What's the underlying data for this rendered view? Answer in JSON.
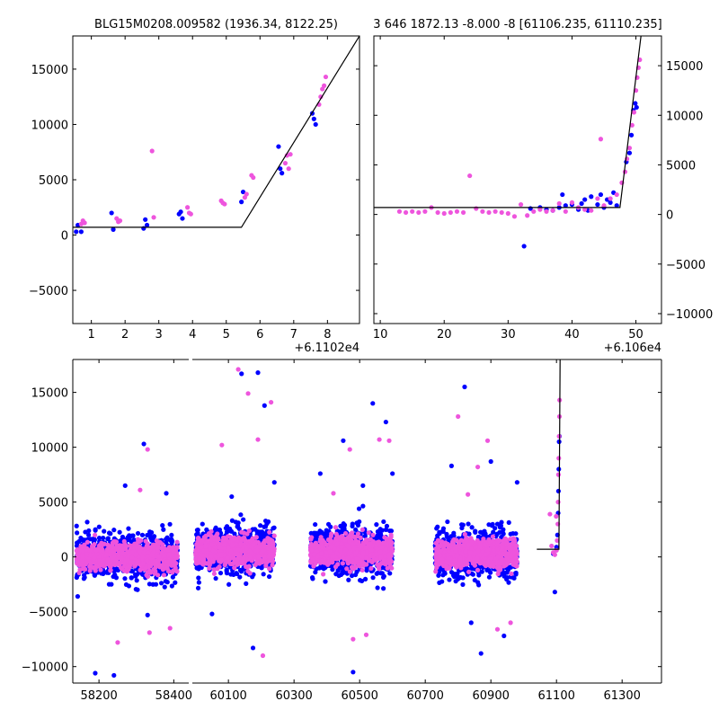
{
  "chart_data": [
    {
      "id": "top-left",
      "type": "scatter",
      "title": "BLG15M0208.009582 (1936.34, 8122.25)",
      "xlim": [
        0.45,
        8.95
      ],
      "ylim": [
        -8000,
        18000
      ],
      "x_offset_label": "+6.1102e4",
      "xticks": [
        1,
        2,
        3,
        4,
        5,
        6,
        7,
        8
      ],
      "yticks": [
        -5000,
        0,
        5000,
        10000,
        15000
      ],
      "ytick_labels": [
        "−5000",
        "0",
        "5000",
        "10000",
        "15000"
      ],
      "yaxis_side": "left",
      "model_line": [
        [
          0.45,
          700
        ],
        [
          5.45,
          700
        ],
        [
          8.95,
          18000
        ]
      ],
      "series": [
        {
          "name": "blue",
          "color": "#0000ff",
          "points": [
            [
              0.55,
              300
            ],
            [
              0.6,
              900
            ],
            [
              0.7,
              300
            ],
            [
              1.6,
              2000
            ],
            [
              1.65,
              500
            ],
            [
              2.55,
              600
            ],
            [
              2.6,
              1400
            ],
            [
              2.65,
              900
            ],
            [
              3.6,
              1900
            ],
            [
              3.65,
              2100
            ],
            [
              3.7,
              1500
            ],
            [
              5.45,
              3000
            ],
            [
              5.5,
              3900
            ],
            [
              6.55,
              8000
            ],
            [
              6.6,
              6000
            ],
            [
              6.65,
              5600
            ],
            [
              7.55,
              11000
            ],
            [
              7.6,
              10500
            ],
            [
              7.65,
              10000
            ]
          ]
        },
        {
          "name": "magenta",
          "color": "#ee55dd",
          "points": [
            [
              0.7,
              1000
            ],
            [
              0.75,
              1300
            ],
            [
              0.8,
              1100
            ],
            [
              1.75,
              1500
            ],
            [
              1.8,
              1200
            ],
            [
              1.85,
              1300
            ],
            [
              2.8,
              7600
            ],
            [
              2.85,
              1600
            ],
            [
              3.85,
              2500
            ],
            [
              3.9,
              2000
            ],
            [
              3.95,
              1900
            ],
            [
              4.85,
              3100
            ],
            [
              4.9,
              2900
            ],
            [
              4.95,
              2800
            ],
            [
              5.55,
              3400
            ],
            [
              5.6,
              3700
            ],
            [
              5.75,
              5400
            ],
            [
              5.8,
              5200
            ],
            [
              6.75,
              6500
            ],
            [
              6.8,
              7200
            ],
            [
              6.85,
              6000
            ],
            [
              6.9,
              7300
            ],
            [
              7.8,
              12500
            ],
            [
              7.85,
              13200
            ],
            [
              7.9,
              13500
            ],
            [
              7.95,
              14300
            ],
            [
              7.75,
              11800
            ]
          ]
        }
      ]
    },
    {
      "id": "top-right",
      "type": "scatter",
      "title": "3 646 1872.13 -8.000 -8 [61106.235, 61110.235]",
      "xlim": [
        9,
        54
      ],
      "ylim": [
        -11000,
        18000
      ],
      "x_offset_label": "+6.106e4",
      "xticks": [
        10,
        20,
        30,
        40,
        50
      ],
      "yticks": [
        -10000,
        -5000,
        0,
        5000,
        10000,
        15000
      ],
      "ytick_labels": [
        "−10000",
        "−5000",
        "0",
        "5000",
        "10000",
        "15000"
      ],
      "yaxis_side": "right",
      "model_line": [
        [
          9,
          700
        ],
        [
          47.5,
          700
        ],
        [
          50.8,
          18000
        ]
      ],
      "series": [
        {
          "name": "blue",
          "color": "#0000ff",
          "points": [
            [
              32.5,
              -3200
            ],
            [
              33.5,
              600
            ],
            [
              35,
              700
            ],
            [
              36,
              500
            ],
            [
              37,
              400
            ],
            [
              38,
              700
            ],
            [
              38.5,
              2000
            ],
            [
              39,
              900
            ],
            [
              40,
              1000
            ],
            [
              41,
              500
            ],
            [
              41.5,
              1100
            ],
            [
              42,
              1500
            ],
            [
              42.5,
              400
            ],
            [
              43,
              1800
            ],
            [
              44,
              1000
            ],
            [
              44.5,
              2000
            ],
            [
              45,
              700
            ],
            [
              45.5,
              1500
            ],
            [
              46,
              1200
            ],
            [
              46.5,
              2200
            ],
            [
              47,
              900
            ],
            [
              48.5,
              5300
            ],
            [
              49,
              6200
            ],
            [
              49.3,
              8000
            ],
            [
              49.6,
              10500
            ],
            [
              49.9,
              11200
            ],
            [
              50.1,
              10800
            ]
          ]
        },
        {
          "name": "magenta",
          "color": "#ee55dd",
          "points": [
            [
              13,
              300
            ],
            [
              14,
              200
            ],
            [
              15,
              300
            ],
            [
              16,
              200
            ],
            [
              17,
              300
            ],
            [
              18,
              700
            ],
            [
              19,
              200
            ],
            [
              20,
              100
            ],
            [
              21,
              200
            ],
            [
              22,
              300
            ],
            [
              23,
              200
            ],
            [
              24,
              3900
            ],
            [
              25,
              600
            ],
            [
              26,
              300
            ],
            [
              27,
              200
            ],
            [
              28,
              300
            ],
            [
              29,
              200
            ],
            [
              30,
              100
            ],
            [
              31,
              -200
            ],
            [
              32,
              1000
            ],
            [
              33,
              -100
            ],
            [
              34,
              300
            ],
            [
              35,
              500
            ],
            [
              36,
              300
            ],
            [
              37,
              400
            ],
            [
              38,
              1100
            ],
            [
              39,
              300
            ],
            [
              40,
              1200
            ],
            [
              41,
              700
            ],
            [
              42,
              500
            ],
            [
              43,
              400
            ],
            [
              44,
              1600
            ],
            [
              44.5,
              7600
            ],
            [
              45,
              900
            ],
            [
              46,
              1600
            ],
            [
              47,
              2000
            ],
            [
              47.8,
              3200
            ],
            [
              48.3,
              4300
            ],
            [
              48.6,
              5600
            ],
            [
              49,
              6700
            ],
            [
              49.4,
              9000
            ],
            [
              49.7,
              10300
            ],
            [
              50,
              12500
            ],
            [
              50.2,
              13800
            ],
            [
              50.4,
              14800
            ],
            [
              50.6,
              15600
            ]
          ]
        }
      ]
    },
    {
      "id": "bottom",
      "type": "scatter",
      "title": "",
      "broken_axis": true,
      "segments": [
        {
          "xlim": [
            58130,
            58440
          ],
          "xticks": [
            58200,
            58400
          ]
        },
        {
          "xlim": [
            59990,
            61420
          ],
          "xticks": [
            60100,
            60300,
            60500,
            60700,
            60900,
            61100,
            61300
          ]
        }
      ],
      "ylim": [
        -11500,
        18000
      ],
      "yticks": [
        -10000,
        -5000,
        0,
        5000,
        10000,
        15000
      ],
      "ytick_labels": [
        "−10000",
        "−5000",
        "0",
        "5000",
        "10000",
        "15000"
      ],
      "yaxis_side": "left",
      "seasons": [
        {
          "x_range": [
            58140,
            58410
          ],
          "center": 0,
          "spread": 900,
          "outliers": [
            [
              58190,
              -10600
            ],
            [
              58250,
              -7800
            ],
            [
              58270,
              6500
            ],
            [
              58310,
              6100
            ],
            [
              58320,
              10300
            ],
            [
              58330,
              9800
            ],
            [
              58330,
              -5300
            ],
            [
              58335,
              -6900
            ],
            [
              58380,
              5800
            ],
            [
              58390,
              -6500
            ],
            [
              58240,
              -10800
            ]
          ]
        },
        {
          "x_range": [
            60000,
            60240
          ],
          "center": 600,
          "spread": 900,
          "outliers": [
            [
              60050,
              -5200
            ],
            [
              60080,
              10200
            ],
            [
              60110,
              5500
            ],
            [
              60130,
              17100
            ],
            [
              60140,
              16700
            ],
            [
              60160,
              14900
            ],
            [
              60175,
              -8300
            ],
            [
              60190,
              10700
            ],
            [
              60190,
              16800
            ],
            [
              60205,
              -9000
            ],
            [
              60210,
              13800
            ],
            [
              60230,
              14100
            ],
            [
              60240,
              6800
            ]
          ]
        },
        {
          "x_range": [
            60350,
            60600
          ],
          "center": 500,
          "spread": 950,
          "outliers": [
            [
              60380,
              7600
            ],
            [
              60420,
              5800
            ],
            [
              60450,
              10600
            ],
            [
              60470,
              9800
            ],
            [
              60480,
              -10500
            ],
            [
              60480,
              -7500
            ],
            [
              60510,
              6500
            ],
            [
              60520,
              -7100
            ],
            [
              60540,
              14000
            ],
            [
              60560,
              10700
            ],
            [
              60580,
              12300
            ],
            [
              60590,
              10600
            ],
            [
              60600,
              7600
            ]
          ]
        },
        {
          "x_range": [
            60730,
            60980
          ],
          "center": 300,
          "spread": 900,
          "outliers": [
            [
              60780,
              8300
            ],
            [
              60800,
              12800
            ],
            [
              60820,
              15500
            ],
            [
              60830,
              5700
            ],
            [
              60840,
              -6000
            ],
            [
              60860,
              8200
            ],
            [
              60870,
              -8800
            ],
            [
              60890,
              10600
            ],
            [
              60900,
              8700
            ],
            [
              60920,
              -6600
            ],
            [
              60940,
              -7200
            ],
            [
              60960,
              -6000
            ],
            [
              60980,
              6800
            ]
          ]
        }
      ],
      "last_season_magenta": [
        [
          61080,
          3900
        ],
        [
          61085,
          1000
        ],
        [
          61090,
          400
        ],
        [
          61095,
          200
        ],
        [
          61100,
          600
        ],
        [
          61102,
          1500
        ],
        [
          61104,
          3000
        ],
        [
          61105,
          5000
        ],
        [
          61106,
          7500
        ],
        [
          61107,
          9000
        ],
        [
          61108,
          11000
        ],
        [
          61109,
          12800
        ],
        [
          61109.5,
          14300
        ],
        [
          61099,
          3700
        ]
      ],
      "last_season_blue": [
        [
          61090,
          300
        ],
        [
          61095,
          -3200
        ],
        [
          61100,
          900
        ],
        [
          61103,
          2000
        ],
        [
          61105,
          4000
        ],
        [
          61106,
          6000
        ],
        [
          61107,
          8000
        ],
        [
          61108,
          10500
        ],
        [
          61109,
          11000
        ]
      ],
      "model_line": [
        [
          61040,
          700
        ],
        [
          61107.5,
          700
        ],
        [
          61111,
          18000
        ]
      ],
      "series_colors": {
        "blue": "#0000ff",
        "magenta": "#ee55dd"
      }
    }
  ]
}
